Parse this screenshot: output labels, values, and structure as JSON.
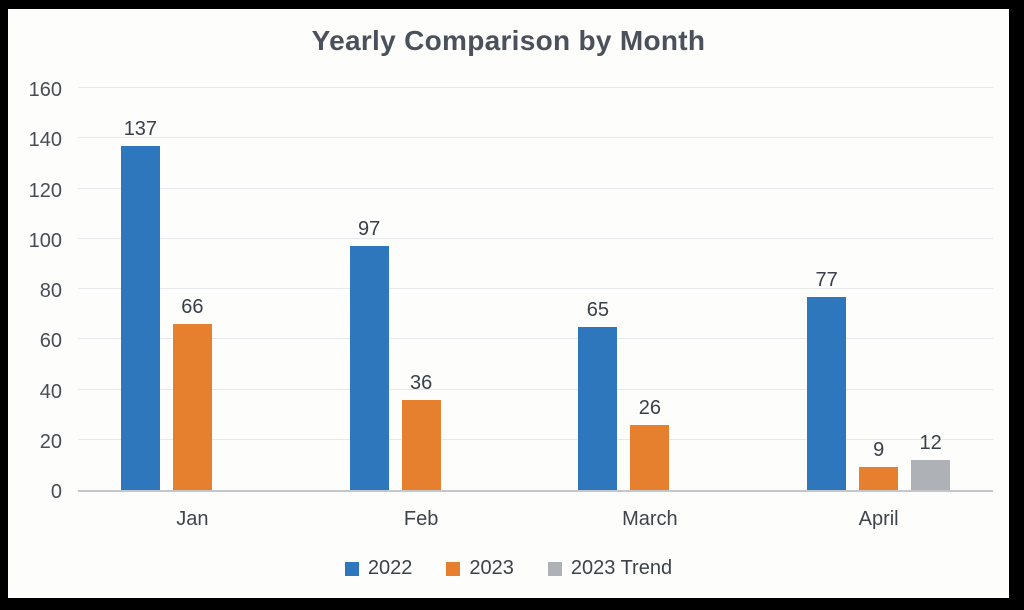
{
  "frame": {
    "border_color": "#000000",
    "background": "#fdfdfc"
  },
  "chart_data": {
    "type": "bar",
    "title": "Yearly Comparison by Month",
    "categories": [
      "Jan",
      "Feb",
      "March",
      "April"
    ],
    "series": [
      {
        "name": "2022",
        "color": "#2e77bd",
        "values": [
          137,
          97,
          65,
          77
        ]
      },
      {
        "name": "2023",
        "color": "#e6802f",
        "values": [
          66,
          36,
          26,
          9
        ]
      },
      {
        "name": "2023 Trend",
        "color": "#aeb1b6",
        "values": [
          null,
          null,
          null,
          12
        ]
      }
    ],
    "ylim": [
      0,
      160
    ],
    "yticks": [
      0,
      20,
      40,
      60,
      80,
      100,
      120,
      140,
      160
    ],
    "grid": true,
    "data_labels": true,
    "legend_position": "bottom"
  }
}
